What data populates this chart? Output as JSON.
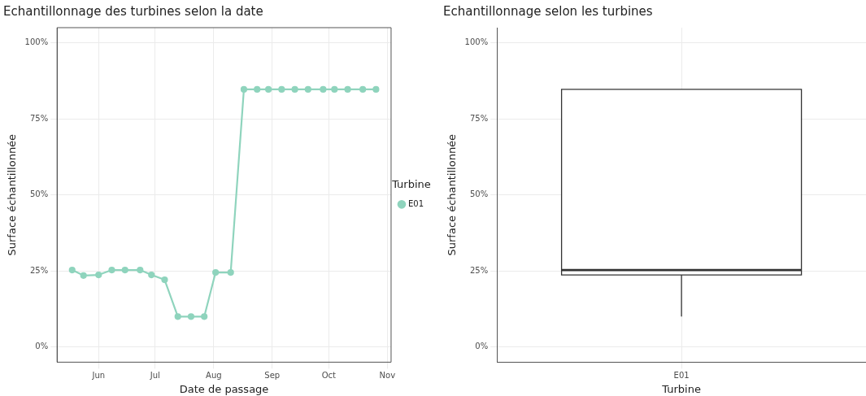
{
  "chart_data": [
    {
      "type": "line",
      "title": "Echantillonnage des turbines selon la date",
      "xlabel": "Date de passage",
      "ylabel": "Surface échantillonnée",
      "legend_title": "Turbine",
      "legend": "right",
      "grid": true,
      "marker": "circle",
      "line_style": "solid",
      "x": [
        "--05-18",
        "--05-24",
        "--06-01",
        "--06-08",
        "--06-15",
        "--06-23",
        "--06-29",
        "--07-06",
        "--07-13",
        "--07-20",
        "--07-27",
        "--08-02",
        "--08-10",
        "--08-17",
        "--08-24",
        "--08-30",
        "--09-06",
        "--09-13",
        "--09-20",
        "--09-28",
        "--10-04",
        "--10-11",
        "--10-19",
        "--10-26"
      ],
      "series": [
        {
          "name": "E01",
          "color": "#8fd4bd",
          "values": [
            25.3,
            23.5,
            23.7,
            25.3,
            25.3,
            25.3,
            23.7,
            22.1,
            10,
            10,
            10,
            24.5,
            24.5,
            84.7,
            84.7,
            84.7,
            84.7,
            84.7,
            84.7,
            84.7,
            84.7,
            84.7,
            84.7,
            84.7
          ]
        }
      ],
      "xlim": [
        "--05-10",
        "--11-03"
      ],
      "xticks": [
        {
          "value": "--06-01",
          "label": "Jun"
        },
        {
          "value": "--07-01",
          "label": "Jul"
        },
        {
          "value": "--08-01",
          "label": "Aug"
        },
        {
          "value": "--09-01",
          "label": "Sep"
        },
        {
          "value": "--10-01",
          "label": "Oct"
        },
        {
          "value": "--11-01",
          "label": "Nov"
        }
      ],
      "ylim": [
        -5,
        105
      ],
      "yticks": [
        {
          "value": 0,
          "label": "0%"
        },
        {
          "value": 25,
          "label": "25%"
        },
        {
          "value": 50,
          "label": "50%"
        },
        {
          "value": 75,
          "label": "75%"
        },
        {
          "value": 100,
          "label": "100%"
        }
      ]
    },
    {
      "type": "box",
      "title": "Echantillonnage selon les turbines",
      "xlabel": "Turbine",
      "ylabel": "Surface échantillonnée",
      "grid": true,
      "categories": [
        "E01"
      ],
      "boxes": [
        {
          "low": 10,
          "q1": 23.7,
          "median": 25.3,
          "q3": 84.7,
          "high": 84.7
        }
      ],
      "ylim": [
        -5,
        105
      ],
      "yticks": [
        {
          "value": 0,
          "label": "0%"
        },
        {
          "value": 25,
          "label": "25%"
        },
        {
          "value": 50,
          "label": "50%"
        },
        {
          "value": 75,
          "label": "75%"
        },
        {
          "value": 100,
          "label": "100%"
        }
      ]
    }
  ]
}
